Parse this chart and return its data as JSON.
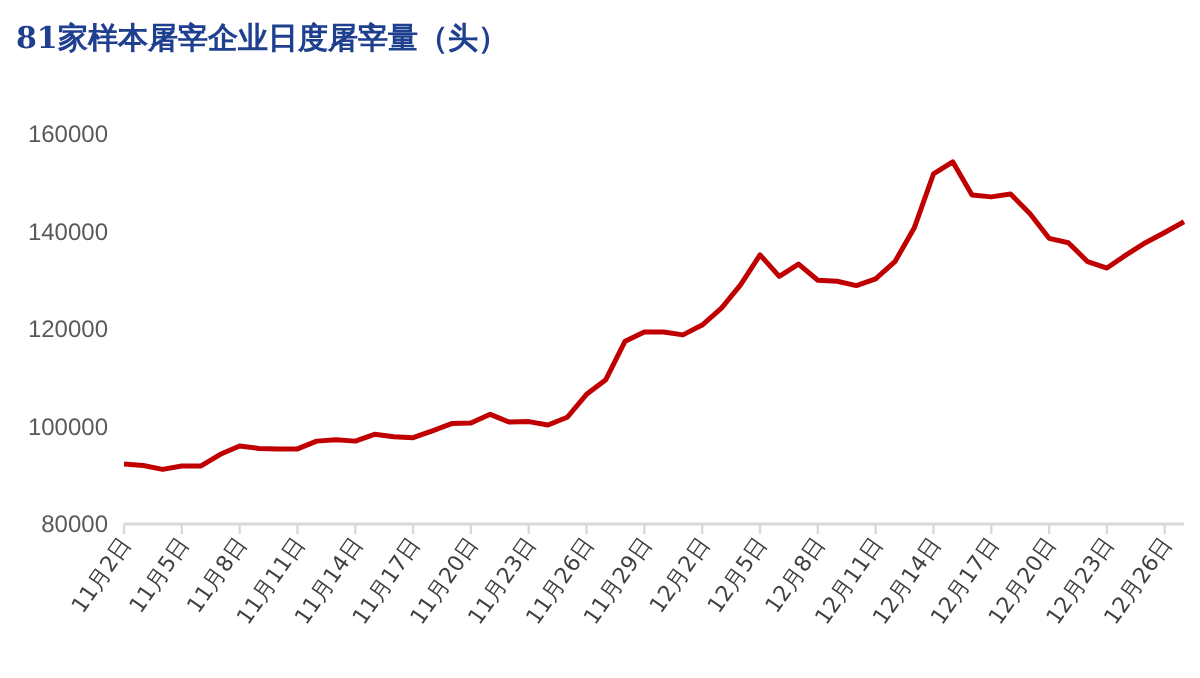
{
  "chart_data": {
    "type": "line",
    "title": "81家样本屠宰企业日度屠宰量（头）",
    "categories": [
      "11月2日",
      null,
      null,
      "11月5日",
      null,
      null,
      "11月8日",
      null,
      null,
      "11月11日",
      null,
      null,
      "11月14日",
      null,
      null,
      "11月17日",
      null,
      null,
      "11月20日",
      null,
      null,
      "11月23日",
      null,
      null,
      "11月26日",
      null,
      null,
      "11月29日",
      null,
      null,
      "12月2日",
      null,
      null,
      "12月5日",
      null,
      null,
      "12月8日",
      null,
      null,
      "12月11日",
      null,
      null,
      "12月14日",
      null,
      null,
      "12月17日",
      null,
      null,
      "12月20日",
      null,
      null,
      "12月23日",
      null,
      null,
      "12月26日",
      null
    ],
    "series": [
      {
        "color": "#c00000",
        "values": [
          92300,
          92000,
          91200,
          91900,
          91900,
          94300,
          96000,
          95500,
          95400,
          95400,
          97000,
          97300,
          97000,
          98400,
          97900,
          97700,
          99100,
          100600,
          100700,
          102500,
          100900,
          101000,
          100300,
          101900,
          106600,
          109600,
          117500,
          119400,
          119400,
          118800,
          120800,
          124300,
          129100,
          135200,
          130800,
          133300,
          130000,
          129800,
          128900,
          130300,
          133800,
          140700,
          151800,
          154300,
          147500,
          147100,
          147700,
          143700,
          138600,
          137700,
          133800,
          132500,
          135200,
          137700,
          139800,
          142000
        ]
      }
    ],
    "ylim": [
      80000,
      160000
    ],
    "yticks": [
      80000,
      100000,
      120000,
      140000,
      160000
    ],
    "grid": false,
    "marker": "none",
    "line_style": "solid"
  }
}
